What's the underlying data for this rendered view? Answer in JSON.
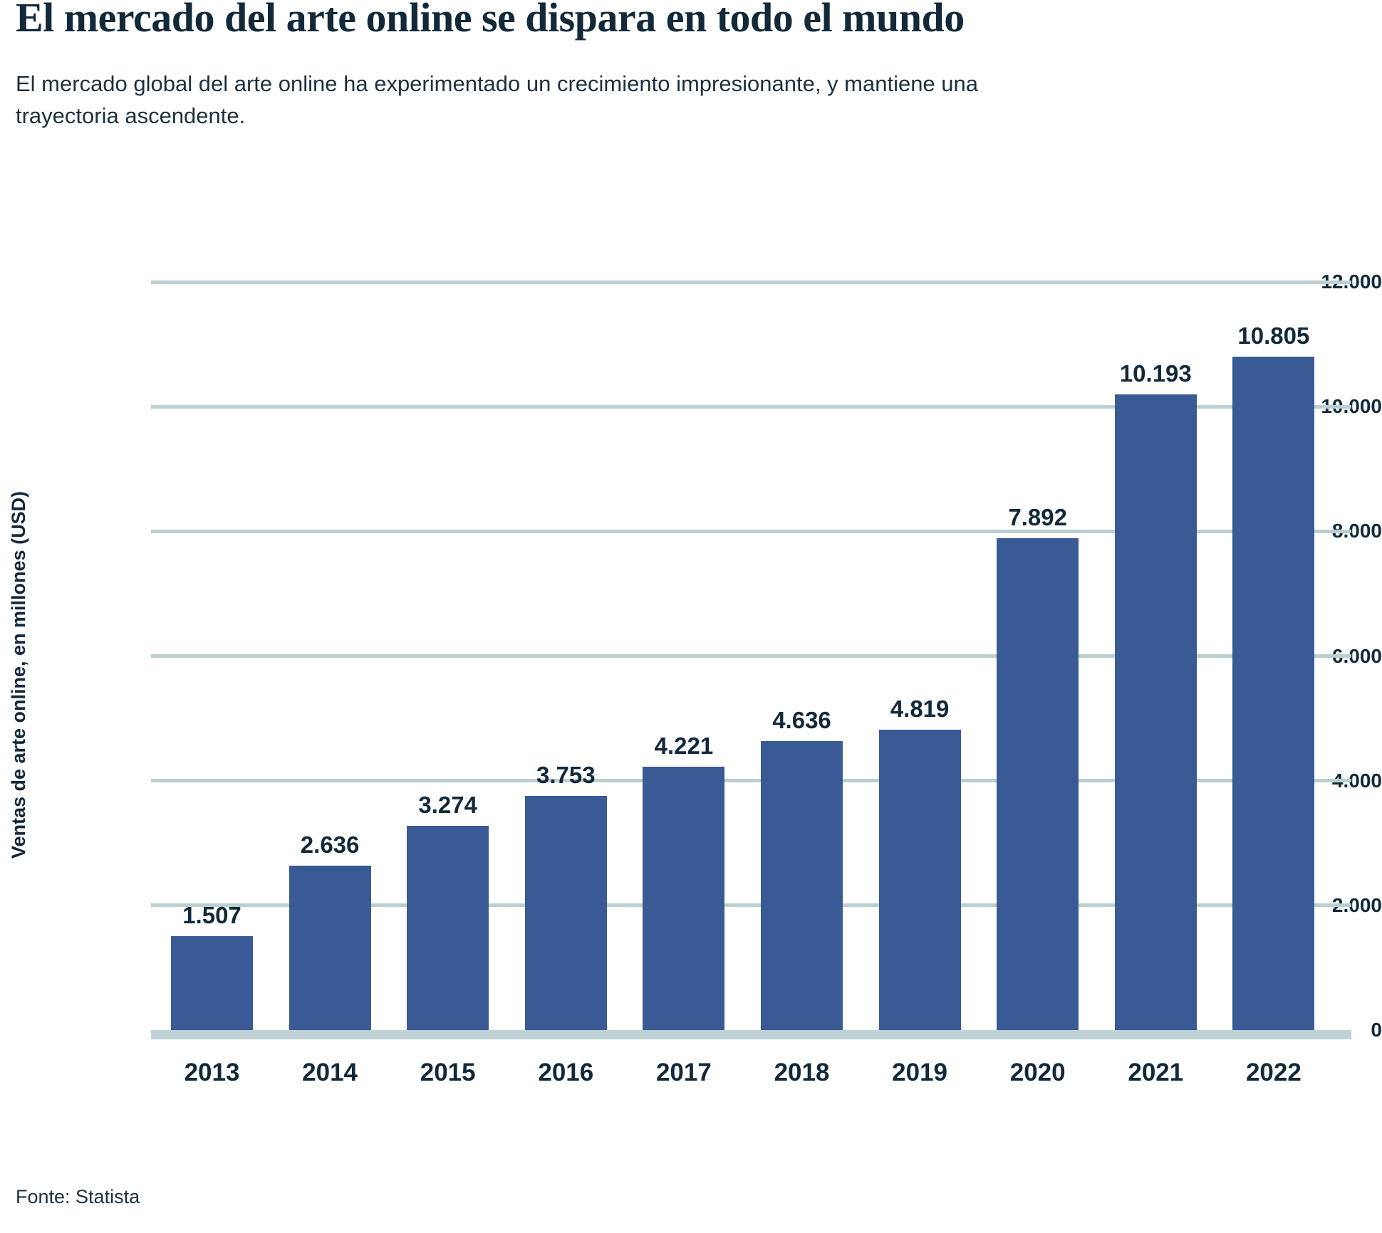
{
  "chart_data": {
    "type": "bar",
    "title": "El mercado del arte online se dispara en todo el mundo",
    "subtitle": "El mercado global del arte online ha experimentado un crecimiento impresionante, y mantiene una trayectoria ascendente.",
    "ylabel": "Ventas de arte online, en millones (USD)",
    "xlabel": "",
    "categories": [
      "2013",
      "2014",
      "2015",
      "2016",
      "2017",
      "2018",
      "2019",
      "2020",
      "2021",
      "2022"
    ],
    "values": [
      1507,
      2636,
      3274,
      3753,
      4221,
      4636,
      4819,
      7892,
      10193,
      10805
    ],
    "value_labels": [
      "1.507",
      "2.636",
      "3.274",
      "3.753",
      "4.221",
      "4.636",
      "4.819",
      "7.892",
      "10.193",
      "10.805"
    ],
    "ylim": [
      0,
      12000
    ],
    "yticks": [
      {
        "value": 0,
        "label": "0"
      },
      {
        "value": 2000,
        "label": "2.000"
      },
      {
        "value": 4000,
        "label": "4.000"
      },
      {
        "value": 6000,
        "label": "6.000"
      },
      {
        "value": 8000,
        "label": "8.000"
      },
      {
        "value": 10000,
        "label": "10.000"
      },
      {
        "value": 12000,
        "label": "12.000"
      }
    ],
    "grid": true,
    "legend": false,
    "source": "Fonte: Statista",
    "colors": {
      "bar": "#3a5a96",
      "text": "#12293a",
      "grid": "#bacfd2",
      "background": "#ffffff"
    }
  }
}
